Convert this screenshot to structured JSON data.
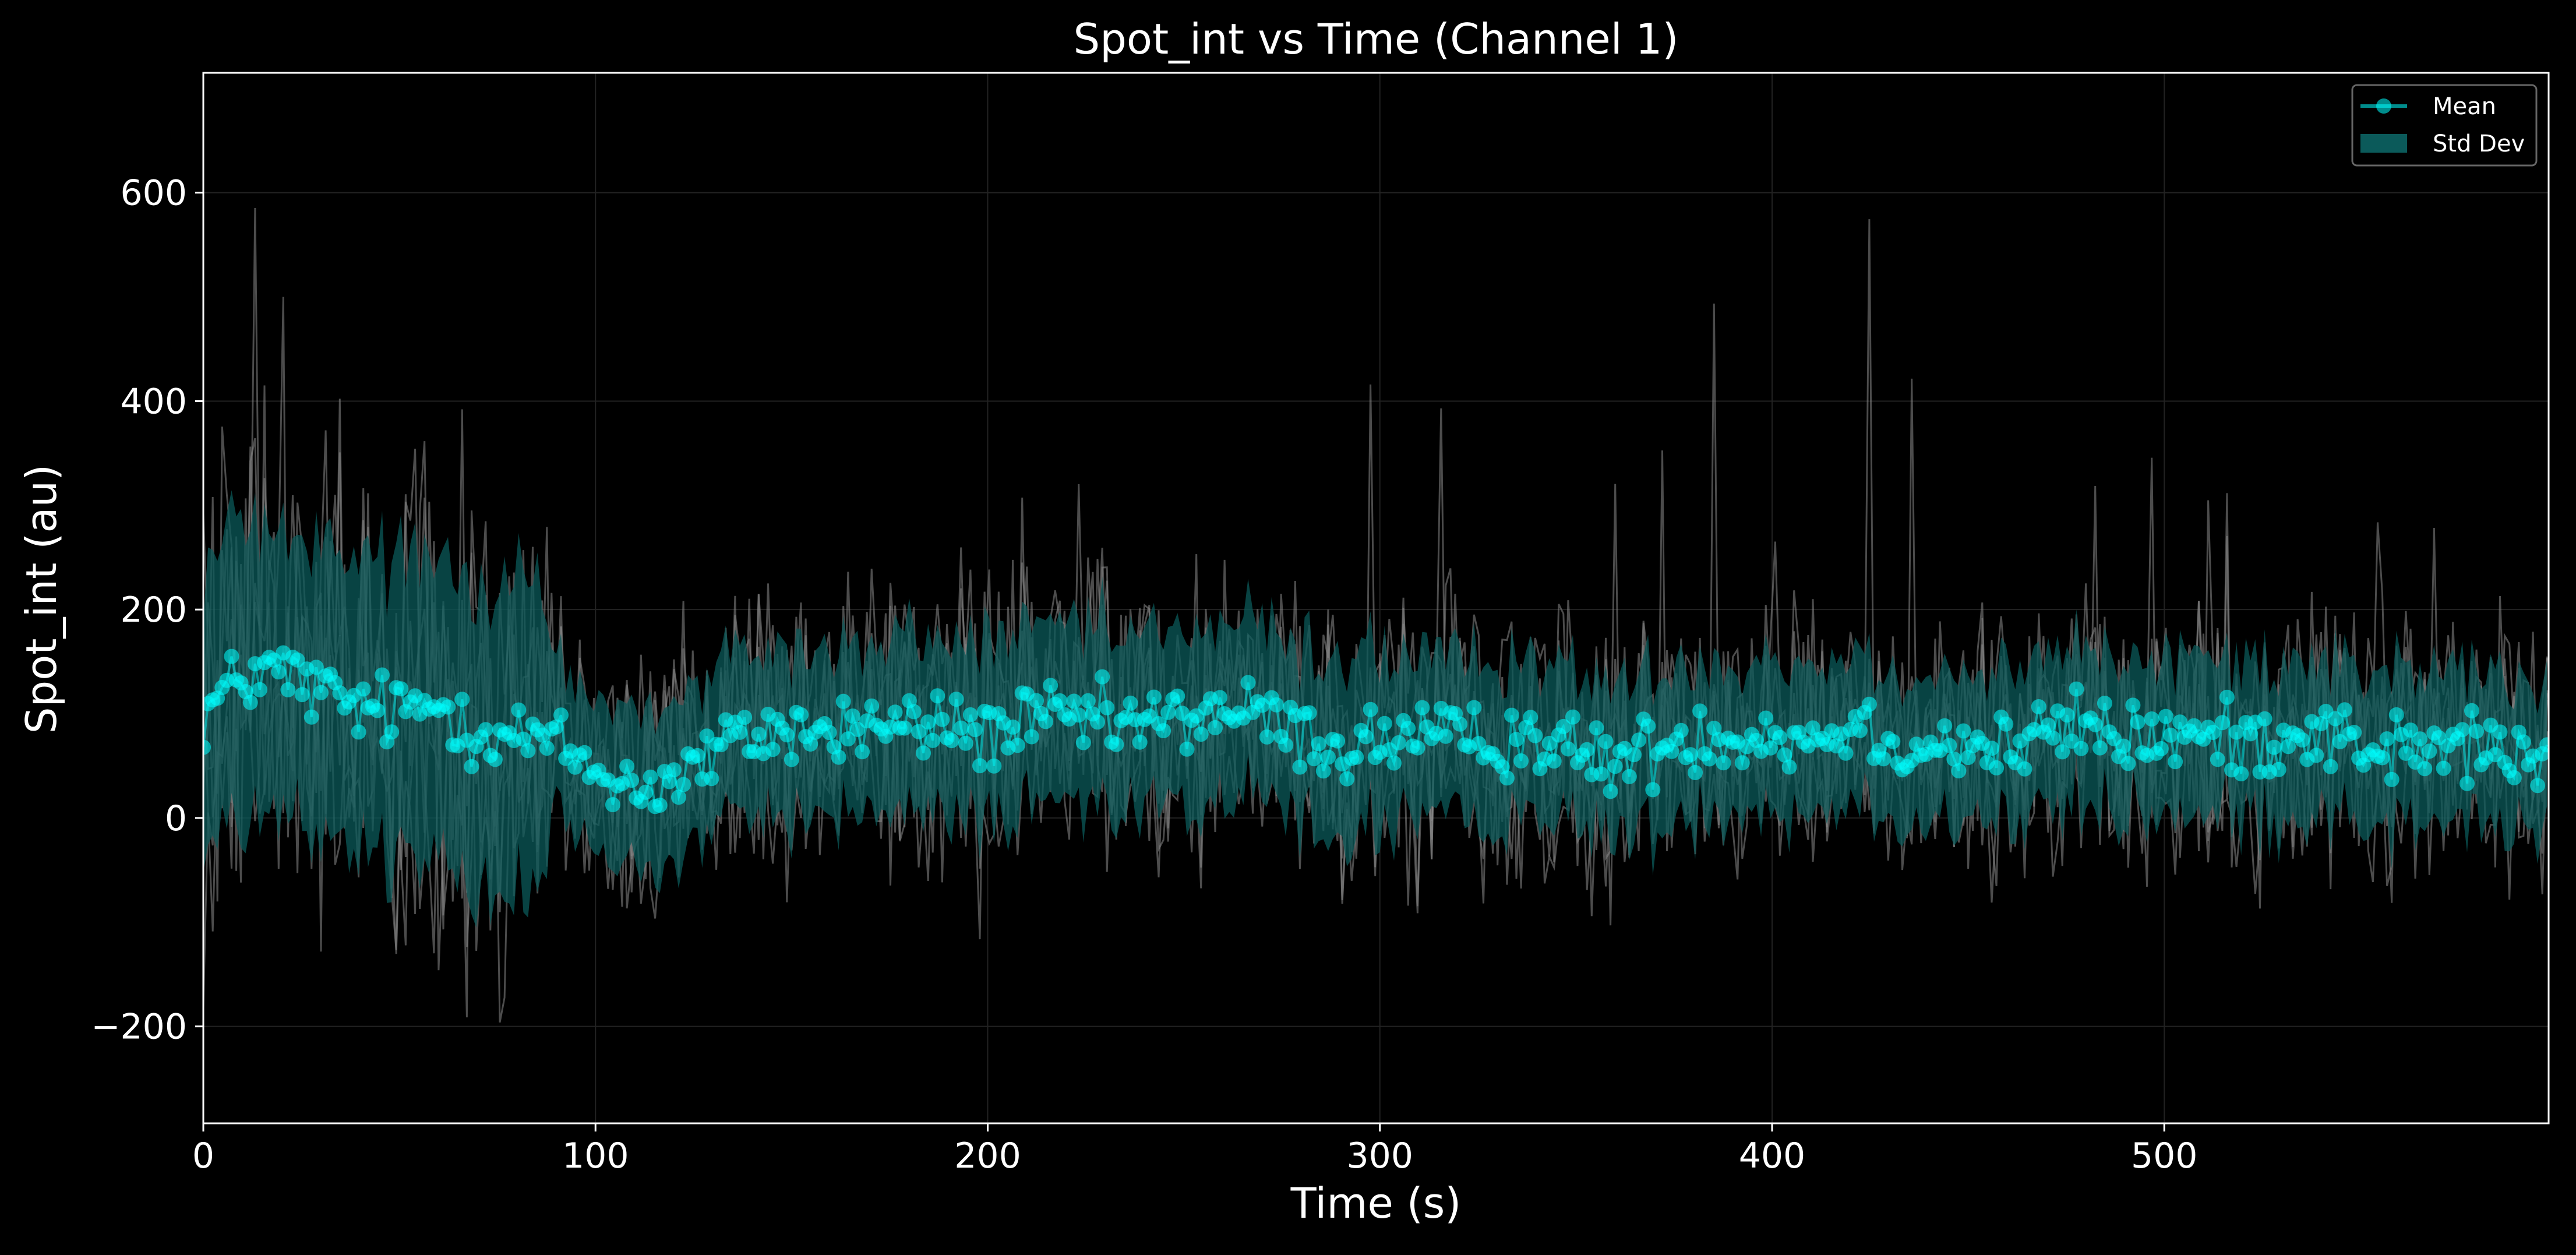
{
  "chart_data": {
    "type": "line",
    "title": "Spot_int vs Time (Channel 1)",
    "xlabel": "Time (s)",
    "ylabel": "Spot_int (au)",
    "xlim": [
      0,
      598
    ],
    "ylim": [
      -293,
      715
    ],
    "xticks": [
      0,
      100,
      200,
      300,
      400,
      500
    ],
    "yticks": [
      -200,
      0,
      200,
      400,
      600
    ],
    "xtick_labels": [
      "0",
      "100",
      "200",
      "300",
      "400",
      "500"
    ],
    "ytick_labels": [
      "−200",
      "0",
      "200",
      "400",
      "600"
    ],
    "grid": true,
    "legend_position": "top-right",
    "legend": [
      {
        "label": "Mean",
        "kind": "line-marker"
      },
      {
        "label": "Std Dev",
        "kind": "band"
      }
    ],
    "colors": {
      "background": "#000000",
      "mean": "#00ffff",
      "band": "#0b5a5a",
      "traces": "#8a8a8a",
      "axes": "#ffffff",
      "grid": "#222222"
    },
    "sample_interval_s": 1.2,
    "mean_series": {
      "name": "Mean",
      "anchor_x": [
        0,
        10,
        20,
        30,
        40,
        50,
        60,
        70,
        80,
        90,
        100,
        110,
        120,
        130,
        140,
        150,
        160,
        170,
        180,
        190,
        200,
        210,
        220,
        230,
        240,
        250,
        260,
        270,
        280,
        290,
        300,
        310,
        320,
        330,
        340,
        350,
        360,
        370,
        380,
        390,
        400,
        410,
        420,
        430,
        440,
        450,
        460,
        470,
        480,
        490,
        500,
        510,
        520,
        530,
        540,
        550,
        560,
        570,
        580,
        590,
        598
      ],
      "anchor_y": [
        100,
        135,
        140,
        120,
        105,
        100,
        110,
        85,
        80,
        70,
        45,
        30,
        35,
        60,
        80,
        85,
        80,
        90,
        85,
        90,
        80,
        90,
        95,
        90,
        90,
        95,
        105,
        95,
        80,
        65,
        75,
        80,
        70,
        75,
        80,
        60,
        55,
        65,
        80,
        80,
        80,
        75,
        90,
        75,
        70,
        70,
        65,
        80,
        90,
        75,
        80,
        75,
        75,
        80,
        85,
        70,
        65,
        65,
        70,
        60,
        50
      ],
      "noise": 25
    },
    "std_band": {
      "name": "Std Dev",
      "anchor_x": [
        0,
        50,
        85,
        90,
        150,
        200,
        250,
        300,
        350,
        400,
        450,
        500,
        550,
        598
      ],
      "half_width": [
        140,
        140,
        150,
        70,
        80,
        85,
        85,
        80,
        75,
        70,
        70,
        75,
        75,
        70
      ]
    },
    "traces": {
      "count": 6,
      "spread": 95,
      "spike": 520
    }
  }
}
